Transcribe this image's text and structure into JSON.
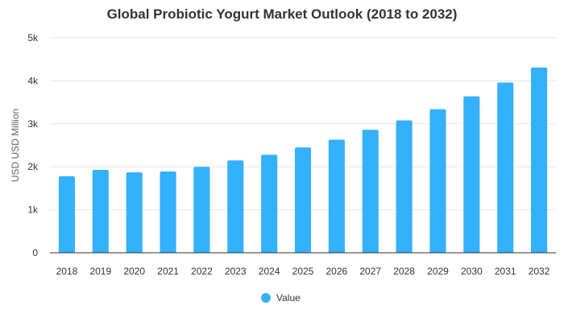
{
  "chart_data": {
    "type": "bar",
    "title": "Global Probiotic Yogurt Market Outlook (2018 to 2032)",
    "xlabel": "",
    "ylabel": "USD USD Million",
    "categories": [
      "2018",
      "2019",
      "2020",
      "2021",
      "2022",
      "2023",
      "2024",
      "2025",
      "2026",
      "2027",
      "2028",
      "2029",
      "2030",
      "2031",
      "2032"
    ],
    "series": [
      {
        "name": "Value",
        "values": [
          1780,
          1930,
          1870,
          1890,
          2000,
          2150,
          2280,
          2450,
          2630,
          2860,
          3080,
          3340,
          3640,
          3960,
          4310
        ],
        "color": "#33b1fb"
      }
    ],
    "ylim": [
      0,
      5000
    ],
    "yticks": [
      0,
      1000,
      2000,
      3000,
      4000,
      5000
    ],
    "ytick_labels": [
      "0",
      "1k",
      "2k",
      "3k",
      "4k",
      "5k"
    ],
    "grid": true,
    "legend_position": "bottom-center"
  }
}
